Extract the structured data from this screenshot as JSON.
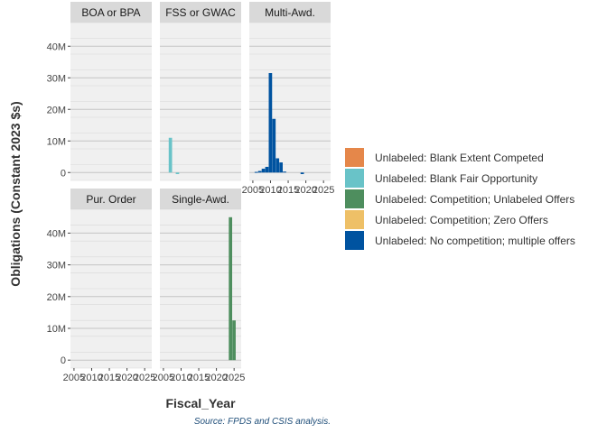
{
  "chart_data": {
    "type": "bar",
    "layout": "faceted",
    "ylabel": "Obligations (Constant 2023 $s)",
    "xlabel": "Fiscal_Year",
    "caption": "Source: FPDS and CSIS analysis.",
    "x_ticks": [
      "2005",
      "2010",
      "2015",
      "2020",
      "2025"
    ],
    "x_range": [
      2004,
      2027
    ],
    "y_ticks": [
      0,
      10,
      20,
      30,
      40
    ],
    "y_tick_labels": [
      "0",
      "10M",
      "20M",
      "30M",
      "40M"
    ],
    "ylim": [
      -2.5,
      47.5
    ],
    "y_unit": "M",
    "grid": true,
    "legend_position": "right",
    "legend": [
      {
        "label": "Unlabeled: Blank Extent Competed",
        "color": "#E5874A"
      },
      {
        "label": "Unlabeled: Blank Fair Opportunity",
        "color": "#69C3C8"
      },
      {
        "label": "Unlabeled: Competition; Unlabeled Offers",
        "color": "#4E8E5E"
      },
      {
        "label": "Unlabeled: Competition; Zero Offers",
        "color": "#EEC067"
      },
      {
        "label": "Unlabeled: No competition; multiple offers",
        "color": "#0053A0"
      }
    ],
    "facets": [
      {
        "title": "BOA or BPA",
        "bars": []
      },
      {
        "title": "FSS or GWAC",
        "bars": [
          {
            "x": 2007,
            "y": 11.0,
            "series": 1
          },
          {
            "x": 2009,
            "y": -0.5,
            "series": 1
          }
        ]
      },
      {
        "title": "Multi-Awd.",
        "bars": [
          {
            "x": 2006,
            "y": 0.2,
            "series": 4
          },
          {
            "x": 2007,
            "y": 0.5,
            "series": 4
          },
          {
            "x": 2008,
            "y": 1.2,
            "series": 4
          },
          {
            "x": 2009,
            "y": 1.8,
            "series": 4
          },
          {
            "x": 2010,
            "y": 31.5,
            "series": 4
          },
          {
            "x": 2011,
            "y": 17.0,
            "series": 4
          },
          {
            "x": 2012,
            "y": 4.5,
            "series": 4
          },
          {
            "x": 2013,
            "y": 3.2,
            "series": 4
          },
          {
            "x": 2014,
            "y": 0.3,
            "series": 4
          },
          {
            "x": 2019,
            "y": -0.5,
            "series": 4
          }
        ]
      },
      {
        "title": "Pur. Order",
        "bars": []
      },
      {
        "title": "Single-Awd.",
        "bars": [
          {
            "x": 2024,
            "y": 45.0,
            "series": 2
          },
          {
            "x": 2025,
            "y": 12.5,
            "series": 2
          }
        ]
      }
    ]
  }
}
